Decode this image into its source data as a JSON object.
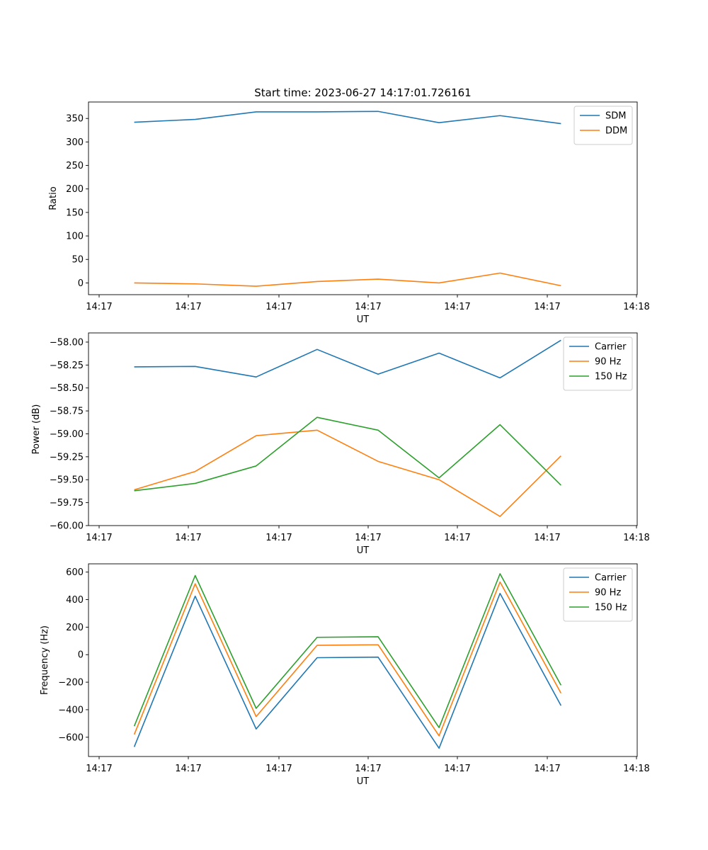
{
  "title": "Start time: 2023-06-27 14:17:01.726161",
  "colors": {
    "blue": "#1f77b4",
    "orange": "#ff7f0e",
    "green": "#2ca02c"
  },
  "chart_data": [
    {
      "type": "line",
      "title": "Start time: 2023-06-27 14:17:01.726161",
      "xlabel": "UT",
      "ylabel": "Ratio",
      "x_tick_labels": [
        "14:17",
        "14:17",
        "14:17",
        "14:17",
        "14:17",
        "14:17",
        "14:17"
      ],
      "x_tick_labels_right": "14:18",
      "xlim_seconds": [
        -0.75,
        8.25
      ],
      "x_seconds": [
        0,
        1,
        2,
        3,
        4,
        5,
        6,
        7
      ],
      "ylim": [
        -25,
        385
      ],
      "yticks": [
        0,
        50,
        100,
        150,
        200,
        250,
        300,
        350
      ],
      "ytick_labels": [
        "0",
        "50",
        "100",
        "150",
        "200",
        "250",
        "300",
        "350"
      ],
      "legend": "top-right",
      "grid": false,
      "series": [
        {
          "name": "SDM",
          "color": "#1f77b4",
          "values": [
            342,
            348,
            364,
            364,
            365,
            341,
            356,
            339
          ]
        },
        {
          "name": "DDM",
          "color": "#ff7f0e",
          "values": [
            0,
            -2,
            -7,
            3,
            8,
            0,
            21,
            -6
          ]
        }
      ]
    },
    {
      "type": "line",
      "title": "",
      "xlabel": "UT",
      "ylabel": "Power (dB)",
      "x_tick_labels": [
        "14:17",
        "14:17",
        "14:17",
        "14:17",
        "14:17",
        "14:17",
        "14:17"
      ],
      "x_tick_labels_right": "14:18",
      "xlim_seconds": [
        -0.75,
        8.25
      ],
      "x_seconds": [
        0,
        1,
        2,
        3,
        4,
        5,
        6,
        7
      ],
      "ylim": [
        -60.0,
        -57.9
      ],
      "yticks": [
        -60.0,
        -59.75,
        -59.5,
        -59.25,
        -59.0,
        -58.75,
        -58.5,
        -58.25,
        -58.0
      ],
      "ytick_labels": [
        "−60.00",
        "−59.75",
        "−59.50",
        "−59.25",
        "−59.00",
        "−58.75",
        "−58.50",
        "−58.25",
        "−58.00"
      ],
      "legend": "top-right",
      "grid": false,
      "series": [
        {
          "name": "Carrier",
          "color": "#1f77b4",
          "values": [
            -58.27,
            -58.265,
            -58.38,
            -58.08,
            -58.35,
            -58.12,
            -58.39,
            -57.98
          ]
        },
        {
          "name": "90 Hz",
          "color": "#ff7f0e",
          "values": [
            -59.61,
            -59.41,
            -59.02,
            -58.96,
            -59.3,
            -59.5,
            -59.9,
            -59.24
          ]
        },
        {
          "name": "150 Hz",
          "color": "#2ca02c",
          "values": [
            -59.62,
            -59.54,
            -59.35,
            -58.82,
            -58.96,
            -59.48,
            -58.9,
            -59.56
          ]
        }
      ]
    },
    {
      "type": "line",
      "title": "",
      "xlabel": "UT",
      "ylabel": "Frequency (Hz)",
      "x_tick_labels": [
        "14:17",
        "14:17",
        "14:17",
        "14:17",
        "14:17",
        "14:17",
        "14:17"
      ],
      "x_tick_labels_right": "14:18",
      "xlim_seconds": [
        -0.75,
        8.25
      ],
      "x_seconds": [
        0,
        1,
        2,
        3,
        4,
        5,
        6,
        7
      ],
      "ylim": [
        -740,
        660
      ],
      "yticks": [
        -600,
        -400,
        -200,
        0,
        200,
        400,
        600
      ],
      "ytick_labels": [
        "−600",
        "−400",
        "−200",
        "0",
        "200",
        "400",
        "600"
      ],
      "legend": "top-right",
      "grid": false,
      "series": [
        {
          "name": "Carrier",
          "color": "#1f77b4",
          "values": [
            -670,
            425,
            -540,
            -22,
            -18,
            -680,
            445,
            -370
          ]
        },
        {
          "name": "90 Hz",
          "color": "#ff7f0e",
          "values": [
            -580,
            515,
            -450,
            68,
            72,
            -590,
            528,
            -280
          ]
        },
        {
          "name": "150 Hz",
          "color": "#2ca02c",
          "values": [
            -520,
            575,
            -390,
            126,
            130,
            -530,
            588,
            -222
          ]
        }
      ]
    }
  ]
}
